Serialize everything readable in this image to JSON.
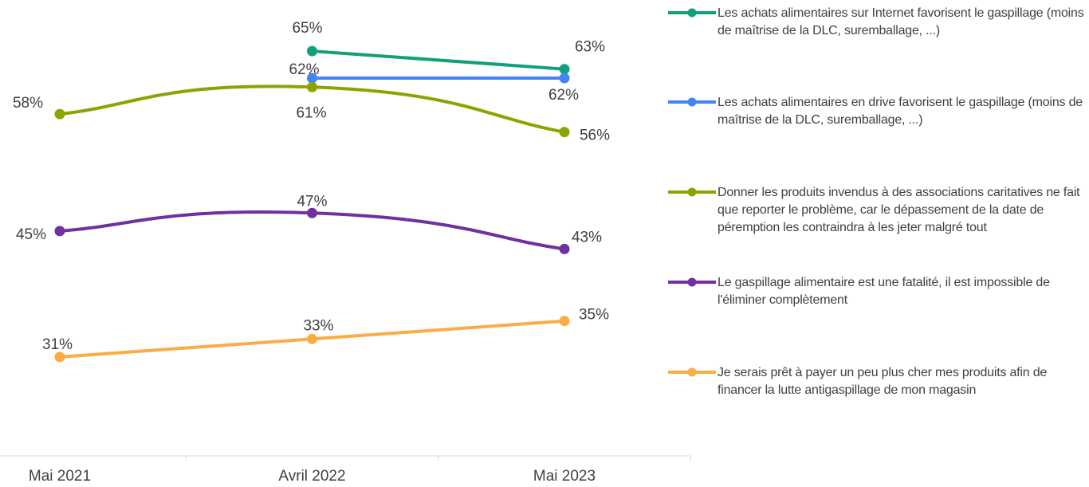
{
  "chart_data": {
    "type": "line",
    "categories": [
      "Mai 2021",
      "Avril 2022",
      "Mai 2023"
    ],
    "ylim": [
      20,
      70
    ],
    "series": [
      {
        "name": "Les achats alimentaires sur Internet favorisent le gaspillage (moins de maîtrise de la DLC, suremballage, ...)",
        "color": "#12a07a",
        "smooth": false,
        "values": [
          null,
          65,
          63
        ],
        "value_labels": [
          null,
          "65%",
          "63%"
        ]
      },
      {
        "name": "Les achats alimentaires en drive favorisent le gaspillage (moins de maîtrise de la DLC, suremballage, ...)",
        "color": "#4285f4",
        "smooth": false,
        "values": [
          null,
          62,
          62
        ],
        "value_labels": [
          null,
          "62%",
          "62%"
        ]
      },
      {
        "name": "Donner les produits invendus à des associations caritatives ne fait que reporter le problème, car le dépassement de la date de péremption les contraindra à les jeter malgré tout",
        "color": "#8fa300",
        "smooth": true,
        "values": [
          58,
          61,
          56
        ],
        "value_labels": [
          "58%",
          "61%",
          "56%"
        ]
      },
      {
        "name": "Le gaspillage alimentaire est une fatalité, il est impossible de l'éliminer complètement",
        "color": "#7030a0",
        "smooth": true,
        "values": [
          45,
          47,
          43
        ],
        "value_labels": [
          "45%",
          "47%",
          "43%"
        ]
      },
      {
        "name": "Je serais prêt à payer un peu plus cher mes produits afin de financer la lutte antigaspillage de mon magasin",
        "color": "#fbac45",
        "smooth": false,
        "values": [
          31,
          33,
          35
        ],
        "value_labels": [
          "31%",
          "33%",
          "35%"
        ]
      }
    ]
  }
}
